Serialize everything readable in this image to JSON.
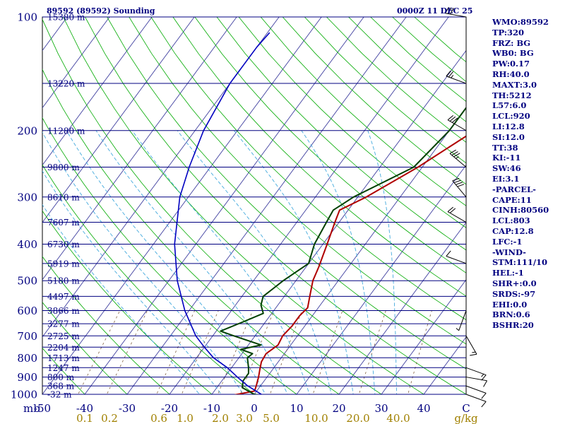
{
  "header": {
    "title": "89592 (89592) Sounding",
    "time": "0000Z 11 DEC 25"
  },
  "colors": {
    "isobar": "#000080",
    "skewT": "#4040a0",
    "dryAdiabat": "#00aa00",
    "moistAdiabat": "#44aadd",
    "mixRatio": "#806040",
    "temperature": "#b00000",
    "dewpoint": "#004000",
    "parcel": "#0000c0",
    "text": "#000080",
    "bottomText": "#a08000"
  },
  "chart_data": {
    "type": "line",
    "title": "89592 (89592) Sounding",
    "subtitle": "0000Z 11 DEC 25",
    "pressure_range": [
      1000,
      100
    ],
    "temperature_range": [
      -50,
      50
    ],
    "isobars": [
      {
        "p": 100,
        "h": "15380 m"
      },
      {
        "p": 150,
        "h": "13220 m"
      },
      {
        "p": 200,
        "h": "11280 m"
      },
      {
        "p": 250,
        "h": "9800 m"
      },
      {
        "p": 300,
        "h": "8610 m"
      },
      {
        "p": 350,
        "h": "7607 m"
      },
      {
        "p": 400,
        "h": "6730 m"
      },
      {
        "p": 450,
        "h": "5919 m"
      },
      {
        "p": 500,
        "h": "5180 m"
      },
      {
        "p": 550,
        "h": "4497 m"
      },
      {
        "p": 600,
        "h": "3866 m"
      },
      {
        "p": 650,
        "h": "3277 m"
      },
      {
        "p": 700,
        "h": "2725 m"
      },
      {
        "p": 750,
        "h": "2204 m"
      },
      {
        "p": 800,
        "h": "1713 m"
      },
      {
        "p": 850,
        "h": "1247 m"
      },
      {
        "p": 900,
        "h": "800 m"
      },
      {
        "p": 950,
        "h": "368 m"
      },
      {
        "p": 1000,
        "h": "-32 m"
      }
    ],
    "pressure_labels": [
      "100",
      "200",
      "300",
      "400",
      "500",
      "600",
      "700",
      "800",
      "900",
      "1000"
    ],
    "pressure_unit": "mb",
    "temp_ticks": [
      "-50",
      "-40",
      "-30",
      "-20",
      "-10",
      "0",
      "10",
      "20",
      "30",
      "40",
      "C"
    ],
    "mixing_ratio_labels": [
      "0.1",
      "0.2",
      "0.6",
      "1.0",
      "2.0",
      "3.0",
      "5.0",
      "10.0",
      "20.0",
      "40.0",
      "g/kg"
    ],
    "series": [
      {
        "name": "temperature",
        "points": [
          [
            1007,
            2.3
          ],
          [
            1003,
            -4.5
          ],
          [
            980,
            -0.5
          ],
          [
            950,
            -1
          ],
          [
            900,
            -2
          ],
          [
            860,
            -3
          ],
          [
            820,
            -4
          ],
          [
            780,
            -4.3
          ],
          [
            740,
            -3
          ],
          [
            700,
            -3.5
          ],
          [
            660,
            -3
          ],
          [
            620,
            -3
          ],
          [
            590,
            -2.5
          ],
          [
            550,
            -4
          ],
          [
            500,
            -6
          ],
          [
            460,
            -7
          ],
          [
            400,
            -9
          ],
          [
            350,
            -11
          ],
          [
            325,
            -12
          ],
          [
            300,
            -8
          ],
          [
            250,
            -1
          ],
          [
            200,
            6
          ],
          [
            150,
            17
          ],
          [
            120,
            26
          ],
          [
            100,
            34
          ]
        ]
      },
      {
        "name": "dewpoint",
        "points": [
          [
            1007,
            2
          ],
          [
            1000,
            0
          ],
          [
            960,
            -4
          ],
          [
            920,
            -5
          ],
          [
            880,
            -5
          ],
          [
            850,
            -6
          ],
          [
            800,
            -8
          ],
          [
            780,
            -7.5
          ],
          [
            760,
            -11
          ],
          [
            740,
            -7
          ],
          [
            700,
            -15
          ],
          [
            680,
            -19
          ],
          [
            640,
            -15
          ],
          [
            610,
            -12
          ],
          [
            580,
            -14
          ],
          [
            550,
            -15
          ],
          [
            500,
            -13
          ],
          [
            450,
            -10
          ],
          [
            400,
            -12
          ],
          [
            350,
            -13
          ],
          [
            325,
            -13.5
          ],
          [
            300,
            -11
          ],
          [
            250,
            -2
          ],
          [
            200,
            0
          ],
          [
            150,
            0
          ],
          [
            130,
            0
          ],
          [
            115,
            2
          ],
          [
            100,
            6
          ]
        ]
      },
      {
        "name": "parcel",
        "points": [
          [
            1007,
            2.3
          ],
          [
            950,
            -3
          ],
          [
            900,
            -7
          ],
          [
            850,
            -11
          ],
          [
            800,
            -16
          ],
          [
            750,
            -20
          ],
          [
            700,
            -24
          ],
          [
            600,
            -31
          ],
          [
            500,
            -38
          ],
          [
            400,
            -45
          ],
          [
            300,
            -52
          ],
          [
            250,
            -55
          ],
          [
            200,
            -58
          ],
          [
            150,
            -60
          ],
          [
            120,
            -60
          ],
          [
            110,
            -59.5
          ]
        ]
      }
    ],
    "wind_barbs": [
      {
        "p": 1000,
        "dir": 110,
        "spd": 10
      },
      {
        "p": 950,
        "dir": 110,
        "spd": 10
      },
      {
        "p": 900,
        "dir": 100,
        "spd": 10
      },
      {
        "p": 850,
        "dir": 110,
        "spd": 15
      },
      {
        "p": 700,
        "dir": 150,
        "spd": 15
      },
      {
        "p": 600,
        "dir": 200,
        "spd": 5
      },
      {
        "p": 450,
        "dir": 290,
        "spd": 10
      },
      {
        "p": 350,
        "dir": 300,
        "spd": 20
      },
      {
        "p": 300,
        "dir": 320,
        "spd": 40
      },
      {
        "p": 250,
        "dir": 310,
        "spd": 35
      },
      {
        "p": 200,
        "dir": 300,
        "spd": 30
      },
      {
        "p": 150,
        "dir": 290,
        "spd": 25
      },
      {
        "p": 100,
        "dir": 280,
        "spd": 30
      }
    ]
  },
  "indices": [
    "WMO:89592",
    "TP:320",
    "FRZ: BG",
    "WB0: BG",
    "PW:0.17",
    "RH:40.0",
    "MAXT:3.0",
    "TH:5212",
    "L57:6.0",
    "LCL:920",
    "LI:12.8",
    "SI:12.0",
    "TT:38",
    "KI:-11",
    "SW:46",
    "EI:3.1",
    "-PARCEL-",
    "CAPE:11",
    "CINH:80560",
    "LCL:803",
    "CAP:12.8",
    "LFC:-1",
    "-WIND-",
    "STM:111/10",
    "HEL:-1",
    "SHR+:0.0",
    "SRDS:-97",
    "EHI:0.0",
    "BRN:0.6",
    "BSHR:20"
  ]
}
